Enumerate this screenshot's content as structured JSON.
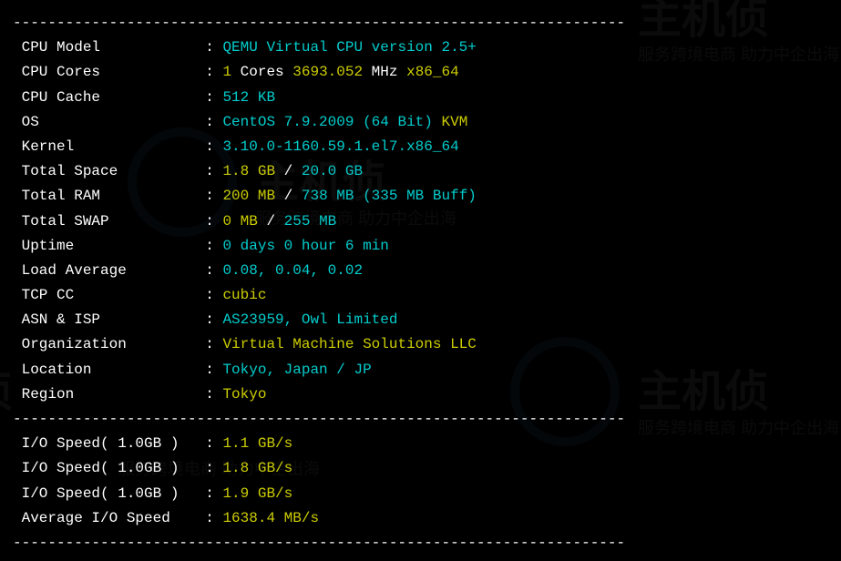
{
  "divider": "----------------------------------------------------------------------",
  "rows": [
    {
      "label": "CPU Model            ",
      "segments": [
        {
          "text": "QEMU Virtual CPU version 2.5+",
          "cls": "cyan"
        }
      ]
    },
    {
      "label": "CPU Cores            ",
      "segments": [
        {
          "text": "1",
          "cls": "yellow"
        },
        {
          "text": " Cores ",
          "cls": "white"
        },
        {
          "text": "3693.052",
          "cls": "yellow"
        },
        {
          "text": " MHz ",
          "cls": "white"
        },
        {
          "text": "x86_64",
          "cls": "yellow"
        }
      ]
    },
    {
      "label": "CPU Cache            ",
      "segments": [
        {
          "text": "512 KB",
          "cls": "cyan"
        }
      ]
    },
    {
      "label": "OS                   ",
      "segments": [
        {
          "text": "CentOS 7.9.2009 (64 Bit)",
          "cls": "cyan"
        },
        {
          "text": " ",
          "cls": "white"
        },
        {
          "text": "KVM",
          "cls": "yellow"
        }
      ]
    },
    {
      "label": "Kernel               ",
      "segments": [
        {
          "text": "3.10.0-1160.59.1.el7.x86_64",
          "cls": "cyan"
        }
      ]
    },
    {
      "label": "Total Space          ",
      "segments": [
        {
          "text": "1.8 GB",
          "cls": "yellow"
        },
        {
          "text": " / ",
          "cls": "white"
        },
        {
          "text": "20.0 GB",
          "cls": "cyan"
        }
      ]
    },
    {
      "label": "Total RAM            ",
      "segments": [
        {
          "text": "200 MB",
          "cls": "yellow"
        },
        {
          "text": " / ",
          "cls": "white"
        },
        {
          "text": "738 MB",
          "cls": "cyan"
        },
        {
          "text": " (335 MB Buff)",
          "cls": "cyan"
        }
      ]
    },
    {
      "label": "Total SWAP           ",
      "segments": [
        {
          "text": "0 MB",
          "cls": "yellow"
        },
        {
          "text": " / ",
          "cls": "white"
        },
        {
          "text": "255 MB",
          "cls": "cyan"
        }
      ]
    },
    {
      "label": "Uptime               ",
      "segments": [
        {
          "text": "0 days 0 hour 6 min",
          "cls": "cyan"
        }
      ]
    },
    {
      "label": "Load Average         ",
      "segments": [
        {
          "text": "0.08, 0.04, 0.02",
          "cls": "cyan"
        }
      ]
    },
    {
      "label": "TCP CC               ",
      "segments": [
        {
          "text": "cubic",
          "cls": "yellow"
        }
      ]
    },
    {
      "label": "ASN & ISP            ",
      "segments": [
        {
          "text": "AS23959, Owl Limited",
          "cls": "cyan"
        }
      ]
    },
    {
      "label": "Organization         ",
      "segments": [
        {
          "text": "Virtual Machine Solutions LLC",
          "cls": "yellow"
        }
      ]
    },
    {
      "label": "Location             ",
      "segments": [
        {
          "text": "Tokyo, Japan / JP",
          "cls": "cyan"
        }
      ]
    },
    {
      "label": "Region               ",
      "segments": [
        {
          "text": "Tokyo",
          "cls": "yellow"
        }
      ]
    }
  ],
  "io_rows": [
    {
      "label": "I/O Speed( 1.0GB )   ",
      "segments": [
        {
          "text": "1.1 GB/s",
          "cls": "yellow"
        }
      ]
    },
    {
      "label": "I/O Speed( 1.0GB )   ",
      "segments": [
        {
          "text": "1.8 GB/s",
          "cls": "yellow"
        }
      ]
    },
    {
      "label": "I/O Speed( 1.0GB )   ",
      "segments": [
        {
          "text": "1.9 GB/s",
          "cls": "yellow"
        }
      ]
    },
    {
      "label": "Average I/O Speed    ",
      "segments": [
        {
          "text": "1638.4 MB/s",
          "cls": "yellow"
        }
      ]
    }
  ],
  "watermarks": {
    "big": "主机侦",
    "sub": "服务跨境电商 助力中企出海"
  }
}
